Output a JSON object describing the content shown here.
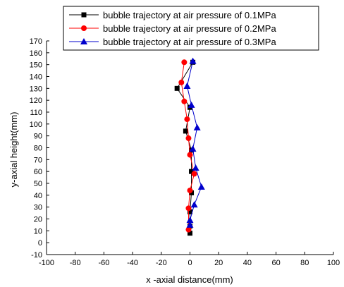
{
  "chart_data": {
    "type": "line",
    "title": "",
    "xlabel": "x -axial distance(mm)",
    "ylabel": "y-axial height(mm)",
    "xlim": [
      -100,
      100
    ],
    "ylim": [
      -10,
      170
    ],
    "xticks": [
      -100,
      -80,
      -60,
      -40,
      -20,
      0,
      20,
      40,
      60,
      80,
      100
    ],
    "yticks": [
      -10,
      0,
      10,
      20,
      30,
      40,
      50,
      60,
      70,
      80,
      90,
      100,
      110,
      120,
      130,
      140,
      150,
      160,
      170
    ],
    "grid": false,
    "legend": "top",
    "series": [
      {
        "name": "bubble trajectory at air pressure of 0.1MPa",
        "color": "#000000",
        "marker": "square",
        "points": [
          [
            0,
            8
          ],
          [
            0,
            14
          ],
          [
            0,
            26
          ],
          [
            1,
            42
          ],
          [
            1,
            60
          ],
          [
            1,
            78
          ],
          [
            -3,
            94
          ],
          [
            0,
            114
          ],
          [
            -9,
            130
          ],
          [
            2,
            152
          ]
        ]
      },
      {
        "name": "bubble trajectory at air pressure of 0.2MPa",
        "color": "#ff0000",
        "marker": "circle",
        "points": [
          [
            -1,
            11
          ],
          [
            -1,
            29
          ],
          [
            0,
            44
          ],
          [
            3,
            58
          ],
          [
            0,
            74
          ],
          [
            -1,
            88
          ],
          [
            -2,
            104
          ],
          [
            -4,
            119
          ],
          [
            -6,
            135
          ],
          [
            -4,
            152
          ]
        ]
      },
      {
        "name": "bubble trajectory at air pressure of 0.3MPa",
        "color": "#0000cc",
        "marker": "triangle",
        "points": [
          [
            0,
            15
          ],
          [
            0,
            19
          ],
          [
            3,
            32
          ],
          [
            8,
            47
          ],
          [
            4,
            63
          ],
          [
            2,
            79
          ],
          [
            5,
            97
          ],
          [
            1,
            116
          ],
          [
            -2,
            132
          ],
          [
            2,
            153
          ]
        ]
      }
    ]
  }
}
